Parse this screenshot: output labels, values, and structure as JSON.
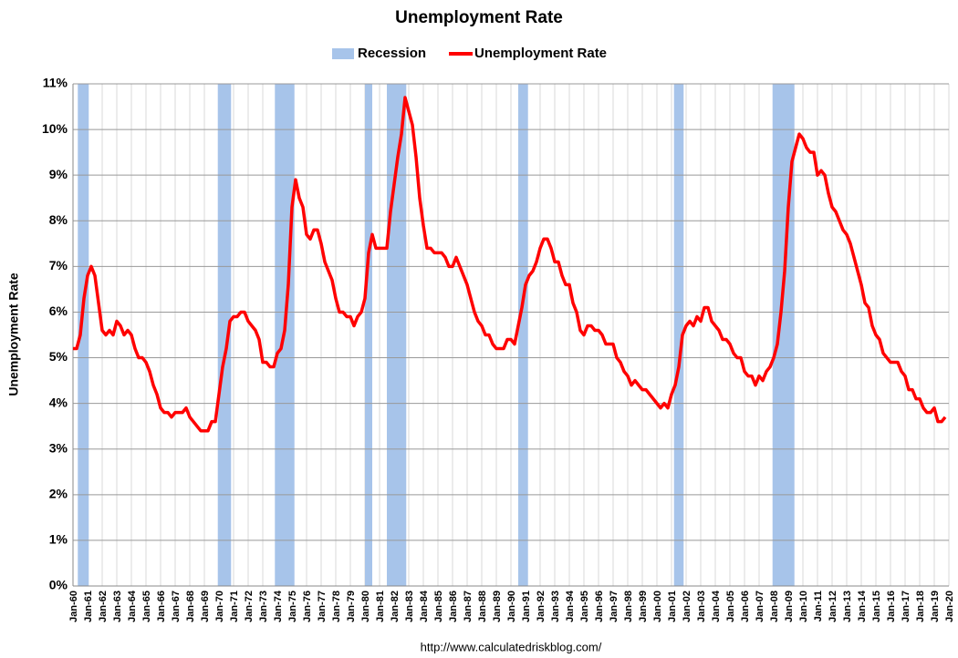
{
  "chart_data": {
    "type": "line",
    "title": "Unemployment Rate",
    "y_label": "Unemployment Rate",
    "source": "http://www.calculatedriskblog.com/",
    "recessions": {
      "name": "Recession",
      "color": "#a7c4ea",
      "periods": [
        [
          1960.33,
          1961.08
        ],
        [
          1969.92,
          1970.83
        ],
        [
          1973.83,
          1975.17
        ],
        [
          1980.0,
          1980.5
        ],
        [
          1981.5,
          1982.83
        ],
        [
          1990.5,
          1991.17
        ],
        [
          2001.17,
          2001.83
        ],
        [
          2007.92,
          2009.42
        ]
      ]
    },
    "series": [
      {
        "name": "Unemployment Rate",
        "color": "#ff0000",
        "x": [
          1960,
          1960.25,
          1960.5,
          1960.75,
          1961,
          1961.25,
          1961.5,
          1961.75,
          1962,
          1962.25,
          1962.5,
          1962.75,
          1963,
          1963.25,
          1963.5,
          1963.75,
          1964,
          1964.25,
          1964.5,
          1964.75,
          1965,
          1965.25,
          1965.5,
          1965.75,
          1966,
          1966.25,
          1966.5,
          1966.75,
          1967,
          1967.25,
          1967.5,
          1967.75,
          1968,
          1968.25,
          1968.5,
          1968.75,
          1969,
          1969.25,
          1969.5,
          1969.75,
          1970,
          1970.25,
          1970.5,
          1970.75,
          1971,
          1971.25,
          1971.5,
          1971.75,
          1972,
          1972.25,
          1972.5,
          1972.75,
          1973,
          1973.25,
          1973.5,
          1973.75,
          1974,
          1974.25,
          1974.5,
          1974.75,
          1975,
          1975.25,
          1975.5,
          1975.75,
          1976,
          1976.25,
          1976.5,
          1976.75,
          1977,
          1977.25,
          1977.5,
          1977.75,
          1978,
          1978.25,
          1978.5,
          1978.75,
          1979,
          1979.25,
          1979.5,
          1979.75,
          1980,
          1980.25,
          1980.5,
          1980.75,
          1981,
          1981.25,
          1981.5,
          1981.75,
          1982,
          1982.25,
          1982.5,
          1982.75,
          1983,
          1983.25,
          1983.5,
          1983.75,
          1984,
          1984.25,
          1984.5,
          1984.75,
          1985,
          1985.25,
          1985.5,
          1985.75,
          1986,
          1986.25,
          1986.5,
          1986.75,
          1987,
          1987.25,
          1987.5,
          1987.75,
          1988,
          1988.25,
          1988.5,
          1988.75,
          1989,
          1989.25,
          1989.5,
          1989.75,
          1990,
          1990.25,
          1990.5,
          1990.75,
          1991,
          1991.25,
          1991.5,
          1991.75,
          1992,
          1992.25,
          1992.5,
          1992.75,
          1993,
          1993.25,
          1993.5,
          1993.75,
          1994,
          1994.25,
          1994.5,
          1994.75,
          1995,
          1995.25,
          1995.5,
          1995.75,
          1996,
          1996.25,
          1996.5,
          1996.75,
          1997,
          1997.25,
          1997.5,
          1997.75,
          1998,
          1998.25,
          1998.5,
          1998.75,
          1999,
          1999.25,
          1999.5,
          1999.75,
          2000,
          2000.25,
          2000.5,
          2000.75,
          2001,
          2001.25,
          2001.5,
          2001.75,
          2002,
          2002.25,
          2002.5,
          2002.75,
          2003,
          2003.25,
          2003.5,
          2003.75,
          2004,
          2004.25,
          2004.5,
          2004.75,
          2005,
          2005.25,
          2005.5,
          2005.75,
          2006,
          2006.25,
          2006.5,
          2006.75,
          2007,
          2007.25,
          2007.5,
          2007.75,
          2008,
          2008.25,
          2008.5,
          2008.75,
          2009,
          2009.25,
          2009.5,
          2009.75,
          2010,
          2010.25,
          2010.5,
          2010.75,
          2011,
          2011.25,
          2011.5,
          2011.75,
          2012,
          2012.25,
          2012.5,
          2012.75,
          2013,
          2013.25,
          2013.5,
          2013.75,
          2014,
          2014.25,
          2014.5,
          2014.75,
          2015,
          2015.25,
          2015.5,
          2015.75,
          2016,
          2016.25,
          2016.5,
          2016.75,
          2017,
          2017.25,
          2017.5,
          2017.75,
          2018,
          2018.25,
          2018.5,
          2018.75,
          2019,
          2019.25,
          2019.5,
          2019.75
        ],
        "values": [
          5.2,
          5.2,
          5.5,
          6.3,
          6.8,
          7.0,
          6.8,
          6.2,
          5.6,
          5.5,
          5.6,
          5.5,
          5.8,
          5.7,
          5.5,
          5.6,
          5.5,
          5.2,
          5.0,
          5.0,
          4.9,
          4.7,
          4.4,
          4.2,
          3.9,
          3.8,
          3.8,
          3.7,
          3.8,
          3.8,
          3.8,
          3.9,
          3.7,
          3.6,
          3.5,
          3.4,
          3.4,
          3.4,
          3.6,
          3.6,
          4.2,
          4.8,
          5.2,
          5.8,
          5.9,
          5.9,
          6.0,
          6.0,
          5.8,
          5.7,
          5.6,
          5.4,
          4.9,
          4.9,
          4.8,
          4.8,
          5.1,
          5.2,
          5.6,
          6.6,
          8.3,
          8.9,
          8.5,
          8.3,
          7.7,
          7.6,
          7.8,
          7.8,
          7.5,
          7.1,
          6.9,
          6.7,
          6.3,
          6.0,
          6.0,
          5.9,
          5.9,
          5.7,
          5.9,
          6.0,
          6.3,
          7.3,
          7.7,
          7.4,
          7.4,
          7.4,
          7.4,
          8.2,
          8.8,
          9.4,
          9.9,
          10.7,
          10.4,
          10.1,
          9.4,
          8.5,
          7.9,
          7.4,
          7.4,
          7.3,
          7.3,
          7.3,
          7.2,
          7.0,
          7.0,
          7.2,
          7.0,
          6.8,
          6.6,
          6.3,
          6.0,
          5.8,
          5.7,
          5.5,
          5.5,
          5.3,
          5.2,
          5.2,
          5.2,
          5.4,
          5.4,
          5.3,
          5.7,
          6.1,
          6.6,
          6.8,
          6.9,
          7.1,
          7.4,
          7.6,
          7.6,
          7.4,
          7.1,
          7.1,
          6.8,
          6.6,
          6.6,
          6.2,
          6.0,
          5.6,
          5.5,
          5.7,
          5.7,
          5.6,
          5.6,
          5.5,
          5.3,
          5.3,
          5.3,
          5.0,
          4.9,
          4.7,
          4.6,
          4.4,
          4.5,
          4.4,
          4.3,
          4.3,
          4.2,
          4.1,
          4.0,
          3.9,
          4.0,
          3.9,
          4.2,
          4.4,
          4.8,
          5.5,
          5.7,
          5.8,
          5.7,
          5.9,
          5.8,
          6.1,
          6.1,
          5.8,
          5.7,
          5.6,
          5.4,
          5.4,
          5.3,
          5.1,
          5.0,
          5.0,
          4.7,
          4.6,
          4.6,
          4.4,
          4.6,
          4.5,
          4.7,
          4.8,
          5.0,
          5.3,
          6.0,
          6.9,
          8.3,
          9.3,
          9.6,
          9.9,
          9.8,
          9.6,
          9.5,
          9.5,
          9.0,
          9.1,
          9.0,
          8.6,
          8.3,
          8.2,
          8.0,
          7.8,
          7.7,
          7.5,
          7.2,
          6.9,
          6.6,
          6.2,
          6.1,
          5.7,
          5.5,
          5.4,
          5.1,
          5.0,
          4.9,
          4.9,
          4.9,
          4.7,
          4.6,
          4.3,
          4.3,
          4.1,
          4.1,
          3.9,
          3.8,
          3.8,
          3.9,
          3.6,
          3.6,
          3.7
        ]
      }
    ],
    "xlim": [
      1960,
      2020
    ],
    "xticks": [
      {
        "value": 1960,
        "label": "Jan-60"
      },
      {
        "value": 1961,
        "label": "Jan-61"
      },
      {
        "value": 1962,
        "label": "Jan-62"
      },
      {
        "value": 1963,
        "label": "Jan-63"
      },
      {
        "value": 1964,
        "label": "Jan-64"
      },
      {
        "value": 1965,
        "label": "Jan-65"
      },
      {
        "value": 1966,
        "label": "Jan-66"
      },
      {
        "value": 1967,
        "label": "Jan-67"
      },
      {
        "value": 1968,
        "label": "Jan-68"
      },
      {
        "value": 1969,
        "label": "Jan-69"
      },
      {
        "value": 1970,
        "label": "Jan-70"
      },
      {
        "value": 1971,
        "label": "Jan-71"
      },
      {
        "value": 1972,
        "label": "Jan-72"
      },
      {
        "value": 1973,
        "label": "Jan-73"
      },
      {
        "value": 1974,
        "label": "Jan-74"
      },
      {
        "value": 1975,
        "label": "Jan-75"
      },
      {
        "value": 1976,
        "label": "Jan-76"
      },
      {
        "value": 1977,
        "label": "Jan-77"
      },
      {
        "value": 1978,
        "label": "Jan-78"
      },
      {
        "value": 1979,
        "label": "Jan-79"
      },
      {
        "value": 1980,
        "label": "Jan-80"
      },
      {
        "value": 1981,
        "label": "Jan-81"
      },
      {
        "value": 1982,
        "label": "Jan-82"
      },
      {
        "value": 1983,
        "label": "Jan-83"
      },
      {
        "value": 1984,
        "label": "Jan-84"
      },
      {
        "value": 1985,
        "label": "Jan-85"
      },
      {
        "value": 1986,
        "label": "Jan-86"
      },
      {
        "value": 1987,
        "label": "Jan-87"
      },
      {
        "value": 1988,
        "label": "Jan-88"
      },
      {
        "value": 1989,
        "label": "Jan-89"
      },
      {
        "value": 1990,
        "label": "Jan-90"
      },
      {
        "value": 1991,
        "label": "Jan-91"
      },
      {
        "value": 1992,
        "label": "Jan-92"
      },
      {
        "value": 1993,
        "label": "Jan-93"
      },
      {
        "value": 1994,
        "label": "Jan-94"
      },
      {
        "value": 1995,
        "label": "Jan-95"
      },
      {
        "value": 1996,
        "label": "Jan-96"
      },
      {
        "value": 1997,
        "label": "Jan-97"
      },
      {
        "value": 1998,
        "label": "Jan-98"
      },
      {
        "value": 1999,
        "label": "Jan-99"
      },
      {
        "value": 2000,
        "label": "Jan-00"
      },
      {
        "value": 2001,
        "label": "Jan-01"
      },
      {
        "value": 2002,
        "label": "Jan-02"
      },
      {
        "value": 2003,
        "label": "Jan-03"
      },
      {
        "value": 2004,
        "label": "Jan-04"
      },
      {
        "value": 2005,
        "label": "Jan-05"
      },
      {
        "value": 2006,
        "label": "Jan-06"
      },
      {
        "value": 2007,
        "label": "Jan-07"
      },
      {
        "value": 2008,
        "label": "Jan-08"
      },
      {
        "value": 2009,
        "label": "Jan-09"
      },
      {
        "value": 2010,
        "label": "Jan-10"
      },
      {
        "value": 2011,
        "label": "Jan-11"
      },
      {
        "value": 2012,
        "label": "Jan-12"
      },
      {
        "value": 2013,
        "label": "Jan-13"
      },
      {
        "value": 2014,
        "label": "Jan-14"
      },
      {
        "value": 2015,
        "label": "Jan-15"
      },
      {
        "value": 2016,
        "label": "Jan-16"
      },
      {
        "value": 2017,
        "label": "Jan-17"
      },
      {
        "value": 2018,
        "label": "Jan-18"
      },
      {
        "value": 2019,
        "label": "Jan-19"
      },
      {
        "value": 2020,
        "label": "Jan-20"
      }
    ],
    "ylim": [
      0,
      11
    ],
    "yticks": [
      {
        "value": 0,
        "label": "0%"
      },
      {
        "value": 1,
        "label": "1%"
      },
      {
        "value": 2,
        "label": "2%"
      },
      {
        "value": 3,
        "label": "3%"
      },
      {
        "value": 4,
        "label": "4%"
      },
      {
        "value": 5,
        "label": "5%"
      },
      {
        "value": 6,
        "label": "6%"
      },
      {
        "value": 7,
        "label": "7%"
      },
      {
        "value": 8,
        "label": "8%"
      },
      {
        "value": 9,
        "label": "9%"
      },
      {
        "value": 10,
        "label": "10%"
      },
      {
        "value": 11,
        "label": "11%"
      }
    ],
    "grid": true
  }
}
